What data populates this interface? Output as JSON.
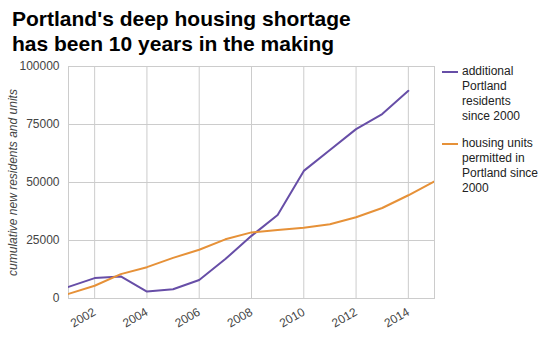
{
  "chart_data": {
    "type": "line",
    "title": "Portland's deep housing shortage has been 10 years in the making",
    "ylabel": "cumulative new residents and units",
    "x": [
      2001,
      2002,
      2003,
      2004,
      2005,
      2006,
      2007,
      2008,
      2009,
      2010,
      2011,
      2012,
      2013,
      2014,
      2015
    ],
    "series": [
      {
        "name": "additional Portland residents since 2000",
        "color": "#674ea7",
        "values": [
          5000,
          8800,
          9500,
          3000,
          4000,
          8000,
          17000,
          27000,
          36000,
          55000,
          64000,
          73000,
          79500,
          89500,
          null
        ]
      },
      {
        "name": "housing units permitted in Portland since 2000",
        "color": "#e69138",
        "values": [
          2000,
          5500,
          10500,
          13500,
          17500,
          21000,
          25500,
          28500,
          29500,
          30500,
          32000,
          35000,
          39000,
          44500,
          50500
        ]
      }
    ],
    "xlim": [
      2001,
      2015
    ],
    "xticks": [
      2002,
      2004,
      2006,
      2008,
      2010,
      2012,
      2014
    ],
    "ylim": [
      0,
      100000
    ],
    "yticks": [
      0,
      25000,
      50000,
      75000,
      100000
    ],
    "grid": true,
    "legend": "right"
  }
}
